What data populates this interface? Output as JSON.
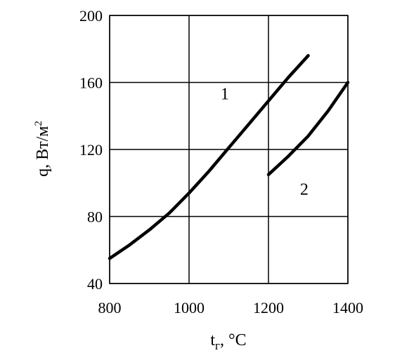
{
  "chart_data": {
    "type": "line",
    "title": "",
    "xlabel": "t",
    "xlabel_sub": "г",
    "xlabel_unit": ", °C",
    "ylabel": "q, Вт/м",
    "ylabel_sup": "2",
    "xlim": [
      800,
      1400
    ],
    "ylim": [
      40,
      200
    ],
    "xticks": [
      800,
      1000,
      1200,
      1400
    ],
    "yticks": [
      40,
      80,
      120,
      160,
      200
    ],
    "xtick_labels": [
      "800",
      "1000",
      "1200",
      "1400"
    ],
    "ytick_labels": [
      "40",
      "80",
      "120",
      "160",
      "200"
    ],
    "grid": true,
    "series": [
      {
        "name": "1",
        "x": [
          800,
          850,
          900,
          950,
          1000,
          1050,
          1100,
          1150,
          1200,
          1250,
          1300
        ],
        "y": [
          55,
          63,
          72,
          82,
          94,
          107,
          121,
          135,
          149,
          163,
          176
        ]
      },
      {
        "name": "2",
        "x": [
          1200,
          1250,
          1300,
          1350,
          1400
        ],
        "y": [
          105,
          116,
          128,
          143,
          160
        ]
      }
    ],
    "annotations": [
      {
        "text": "1",
        "x": 1090,
        "y": 150
      },
      {
        "text": "2",
        "x": 1290,
        "y": 93
      }
    ]
  }
}
